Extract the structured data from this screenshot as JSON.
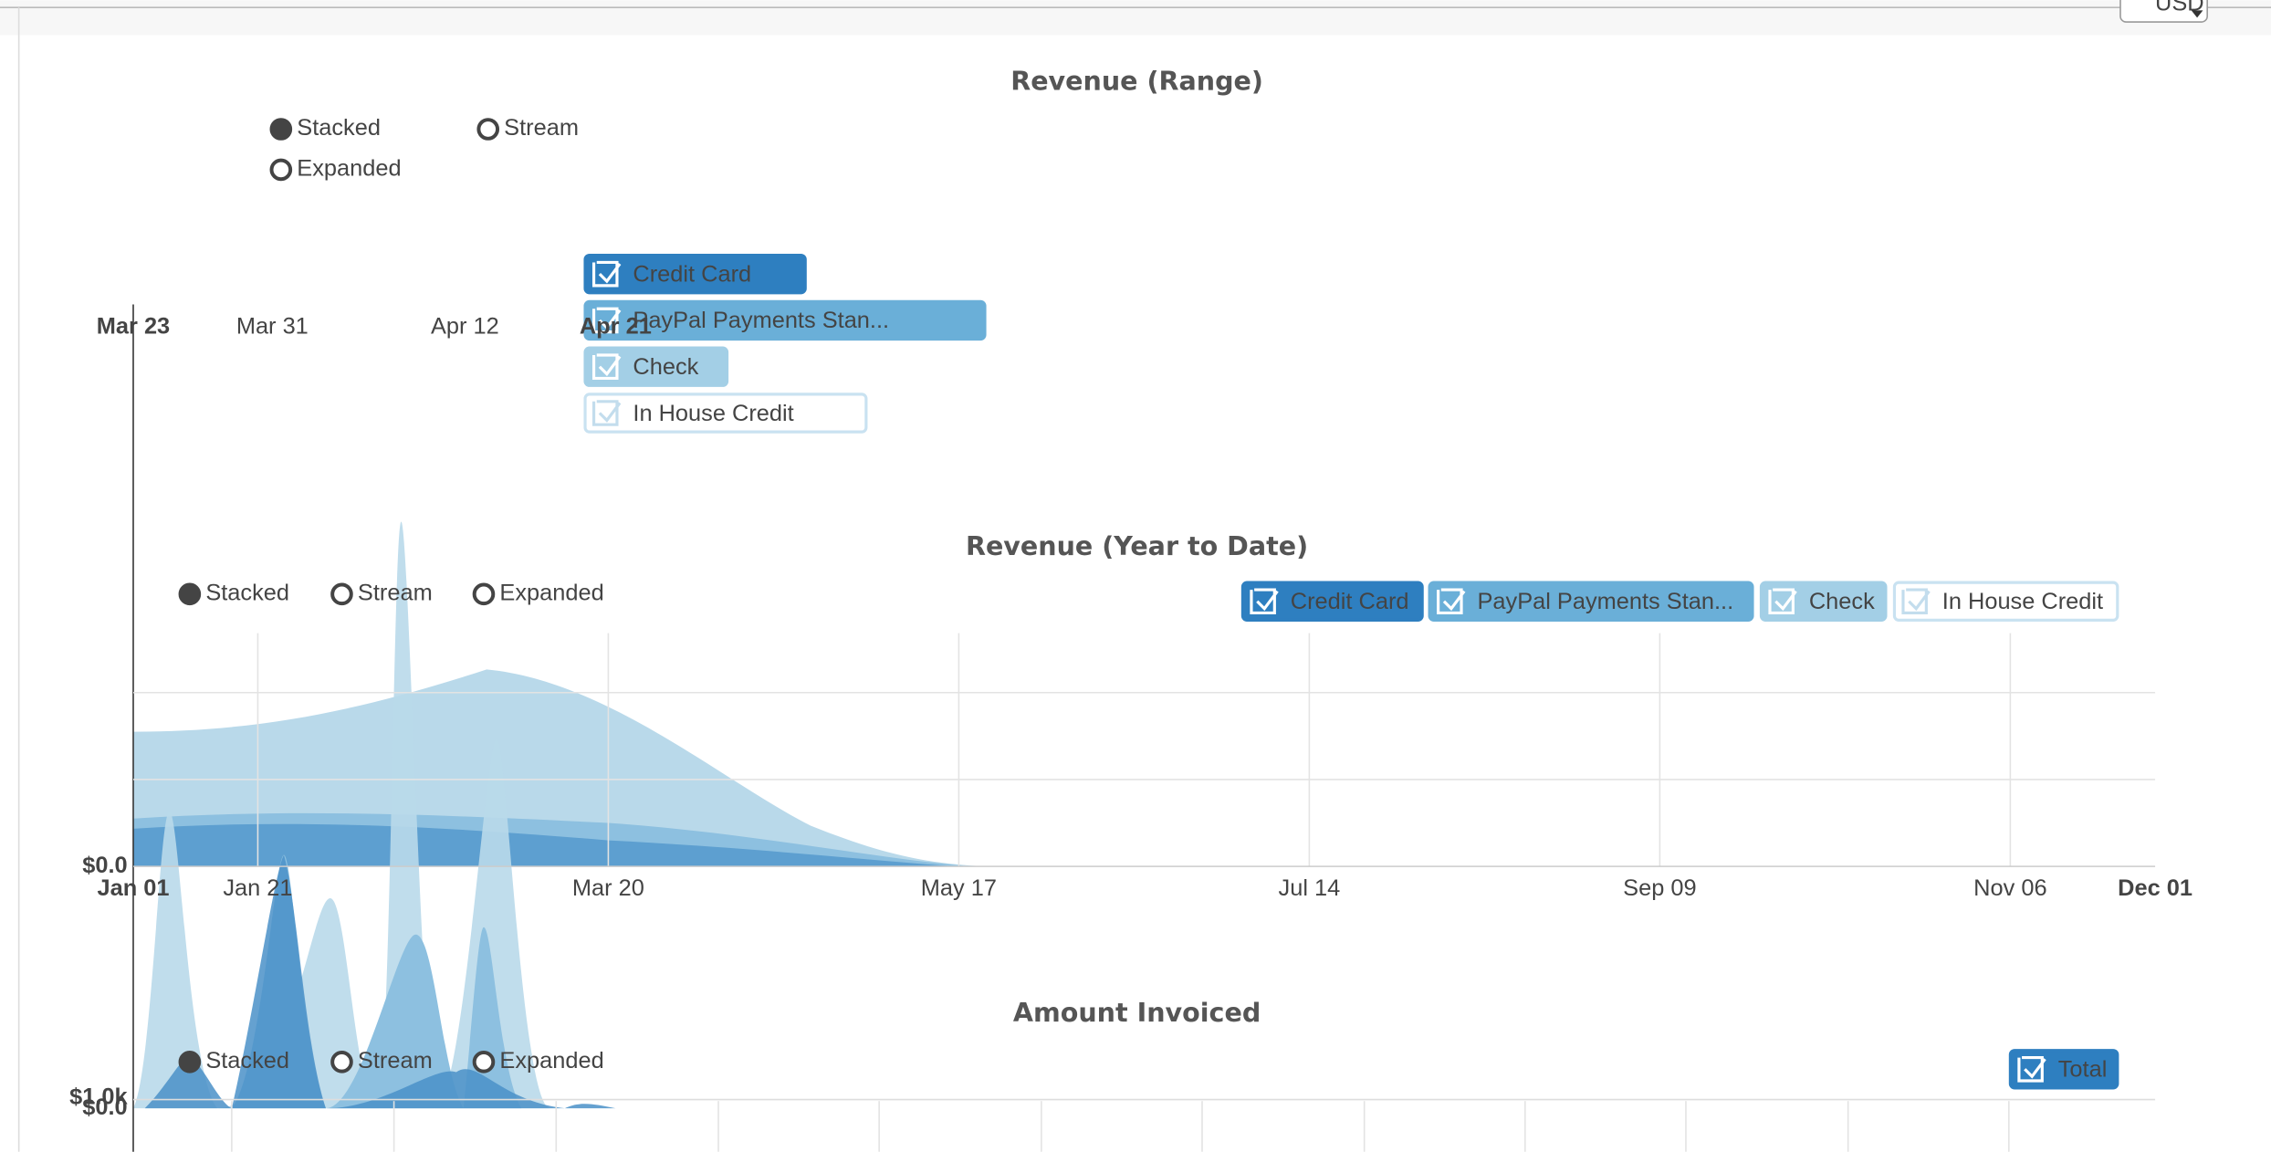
{
  "header": {
    "currency": "USD"
  },
  "charts": [
    {
      "title": "Revenue (Range)",
      "modes": [
        "Stacked",
        "Stream",
        "Expanded"
      ],
      "legend": [
        "Credit Card",
        "PayPal Payments Stan...",
        "Check",
        "In House Credit"
      ],
      "x_labels": [
        "Mar 23",
        "Mar 31",
        "Apr 12",
        "Apr 21"
      ]
    },
    {
      "title": "Revenue (Year to Date)",
      "modes": [
        "Stacked",
        "Stream",
        "Expanded"
      ],
      "legend": [
        "Credit Card",
        "PayPal Payments Stan...",
        "Check",
        "In House Credit"
      ],
      "x_labels": [
        "Jan 01",
        "Jan 21",
        "Mar 20",
        "May 17",
        "Jul 14",
        "Sep 09",
        "Nov 06",
        "Dec 01"
      ],
      "y_labels": [
        "$0.0"
      ]
    },
    {
      "title": "Amount Invoiced",
      "modes": [
        "Stacked",
        "Stream",
        "Expanded"
      ],
      "legend": [
        "Total"
      ],
      "y_labels": [
        "$1.0k",
        "$0.0"
      ]
    }
  ]
}
